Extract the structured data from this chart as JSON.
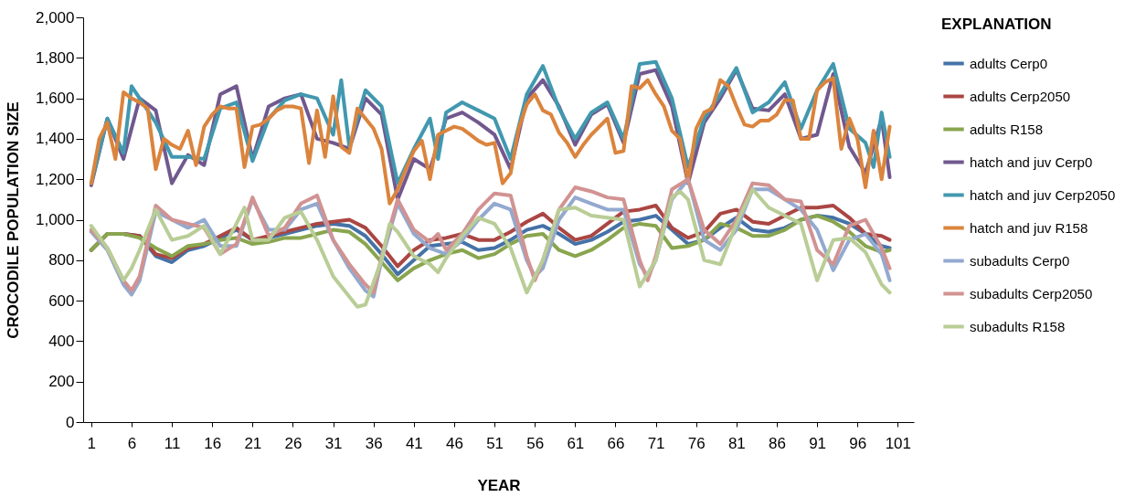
{
  "chart_data": {
    "type": "line",
    "xlabel": "YEAR",
    "ylabel": "CROCODILE POPULATION SIZE",
    "legend_title": "EXPLANATION",
    "legend": "right",
    "grid": false,
    "marker": "none",
    "line_style": "solid",
    "xlim": [
      0,
      103
    ],
    "xticks": [
      1,
      6,
      11,
      16,
      21,
      26,
      31,
      36,
      41,
      46,
      51,
      56,
      61,
      66,
      71,
      76,
      81,
      86,
      91,
      96,
      101
    ],
    "ylim": [
      0,
      2000
    ],
    "yticks": [
      0,
      200,
      400,
      600,
      800,
      {
        "value": 1000,
        "label": "1,000"
      },
      {
        "value": 1200,
        "label": "1,200"
      },
      {
        "value": 1400,
        "label": "1,400"
      },
      {
        "value": 1600,
        "label": "1,600"
      },
      {
        "value": 1800,
        "label": "1,800"
      },
      {
        "value": 2000,
        "label": "2,000"
      }
    ],
    "series": [
      {
        "name": "adults Cerp0",
        "color": "#4572a7",
        "x": [
          1,
          3,
          5,
          7,
          9,
          11,
          13,
          15,
          17,
          19,
          21,
          23,
          25,
          27,
          29,
          31,
          33,
          35,
          37,
          39,
          41,
          43,
          45,
          47,
          49,
          51,
          53,
          55,
          57,
          59,
          61,
          63,
          65,
          67,
          69,
          71,
          73,
          75,
          77,
          79,
          81,
          83,
          85,
          87,
          89,
          91,
          93,
          95,
          97,
          99,
          100
        ],
        "values": [
          850,
          930,
          930,
          920,
          820,
          790,
          850,
          870,
          910,
          950,
          900,
          910,
          930,
          950,
          970,
          980,
          970,
          920,
          830,
          730,
          800,
          870,
          880,
          890,
          850,
          860,
          900,
          950,
          970,
          930,
          880,
          900,
          940,
          990,
          1000,
          1020,
          950,
          880,
          900,
          960,
          1010,
          950,
          940,
          960,
          1000,
          1020,
          1010,
          980,
          930,
          870,
          860
        ]
      },
      {
        "name": "adults Cerp2050",
        "color": "#aa4643",
        "x": [
          1,
          3,
          5,
          7,
          9,
          11,
          13,
          15,
          17,
          19,
          21,
          23,
          25,
          27,
          29,
          31,
          33,
          35,
          37,
          39,
          41,
          43,
          45,
          47,
          49,
          51,
          53,
          55,
          57,
          59,
          61,
          63,
          65,
          67,
          69,
          71,
          73,
          75,
          77,
          79,
          81,
          83,
          85,
          87,
          89,
          91,
          93,
          95,
          97,
          99,
          100
        ],
        "values": [
          850,
          930,
          930,
          920,
          830,
          810,
          860,
          880,
          920,
          960,
          900,
          920,
          940,
          960,
          980,
          990,
          1000,
          960,
          870,
          770,
          850,
          900,
          910,
          930,
          900,
          900,
          940,
          990,
          1030,
          960,
          900,
          920,
          980,
          1040,
          1050,
          1070,
          960,
          910,
          940,
          1030,
          1050,
          990,
          980,
          1020,
          1060,
          1060,
          1070,
          1010,
          930,
          920,
          900
        ]
      },
      {
        "name": "adults R158",
        "color": "#89a54e",
        "x": [
          1,
          3,
          5,
          7,
          9,
          11,
          13,
          15,
          17,
          19,
          21,
          23,
          25,
          27,
          29,
          31,
          33,
          35,
          37,
          39,
          41,
          43,
          45,
          47,
          49,
          51,
          53,
          55,
          57,
          59,
          61,
          63,
          65,
          67,
          69,
          71,
          73,
          75,
          77,
          79,
          81,
          83,
          85,
          87,
          89,
          91,
          93,
          95,
          97,
          99,
          100
        ],
        "values": [
          850,
          930,
          930,
          910,
          860,
          820,
          870,
          880,
          900,
          910,
          880,
          890,
          910,
          910,
          930,
          950,
          940,
          880,
          790,
          700,
          760,
          800,
          830,
          850,
          810,
          830,
          880,
          920,
          930,
          850,
          820,
          850,
          900,
          960,
          980,
          970,
          860,
          870,
          900,
          980,
          960,
          920,
          920,
          950,
          1000,
          1020,
          990,
          940,
          870,
          840,
          850
        ]
      },
      {
        "name": "hatch and juv Cerp0",
        "color": "#71588f",
        "x": [
          1,
          3,
          5,
          7,
          9,
          11,
          13,
          15,
          17,
          19,
          21,
          23,
          25,
          27,
          29,
          31,
          33,
          35,
          37,
          39,
          41,
          43,
          45,
          47,
          49,
          51,
          53,
          55,
          57,
          59,
          61,
          63,
          65,
          67,
          69,
          71,
          73,
          75,
          77,
          79,
          81,
          83,
          85,
          87,
          89,
          91,
          93,
          95,
          97,
          99,
          100
        ],
        "values": [
          1170,
          1500,
          1300,
          1600,
          1540,
          1180,
          1320,
          1270,
          1620,
          1660,
          1300,
          1560,
          1600,
          1620,
          1400,
          1380,
          1350,
          1600,
          1520,
          1100,
          1300,
          1250,
          1500,
          1530,
          1480,
          1420,
          1250,
          1600,
          1690,
          1560,
          1370,
          1520,
          1570,
          1380,
          1720,
          1740,
          1560,
          1180,
          1480,
          1600,
          1740,
          1550,
          1540,
          1620,
          1400,
          1420,
          1720,
          1360,
          1230,
          1500,
          1210
        ]
      },
      {
        "name": "hatch and juv Cerp2050",
        "color": "#4198af",
        "x": [
          1,
          3,
          5,
          6,
          7,
          9,
          11,
          13,
          15,
          17,
          19,
          21,
          23,
          25,
          27,
          29,
          31,
          32,
          33,
          35,
          37,
          39,
          41,
          43,
          44,
          45,
          47,
          49,
          51,
          53,
          55,
          57,
          59,
          61,
          63,
          65,
          67,
          69,
          71,
          73,
          75,
          77,
          79,
          81,
          83,
          85,
          87,
          89,
          91,
          93,
          95,
          97,
          98,
          99,
          100
        ],
        "values": [
          1180,
          1500,
          1330,
          1660,
          1600,
          1480,
          1310,
          1310,
          1300,
          1550,
          1580,
          1290,
          1500,
          1590,
          1620,
          1600,
          1420,
          1690,
          1360,
          1640,
          1560,
          1180,
          1350,
          1500,
          1300,
          1530,
          1580,
          1540,
          1500,
          1300,
          1620,
          1760,
          1550,
          1400,
          1530,
          1580,
          1400,
          1770,
          1780,
          1600,
          1260,
          1500,
          1620,
          1750,
          1530,
          1580,
          1680,
          1450,
          1640,
          1770,
          1450,
          1380,
          1260,
          1530,
          1310
        ]
      },
      {
        "name": "hatch and juv R158",
        "color": "#db843d",
        "x": [
          1,
          2,
          3,
          4,
          5,
          6,
          7,
          8,
          9,
          10,
          11,
          12,
          13,
          14,
          15,
          16,
          17,
          18,
          19,
          20,
          21,
          22,
          23,
          24,
          25,
          26,
          27,
          28,
          29,
          30,
          31,
          32,
          33,
          34,
          35,
          36,
          37,
          38,
          39,
          40,
          41,
          42,
          43,
          44,
          45,
          46,
          47,
          48,
          49,
          50,
          51,
          52,
          53,
          54,
          55,
          56,
          57,
          58,
          59,
          60,
          61,
          62,
          63,
          64,
          65,
          66,
          67,
          68,
          69,
          70,
          71,
          72,
          73,
          74,
          75,
          76,
          77,
          78,
          79,
          80,
          81,
          82,
          83,
          84,
          85,
          86,
          87,
          88,
          89,
          90,
          91,
          92,
          93,
          94,
          95,
          96,
          97,
          98,
          99,
          100
        ],
        "values": [
          1180,
          1400,
          1480,
          1300,
          1630,
          1600,
          1580,
          1550,
          1250,
          1400,
          1370,
          1350,
          1440,
          1270,
          1460,
          1520,
          1560,
          1550,
          1550,
          1260,
          1460,
          1470,
          1500,
          1540,
          1560,
          1560,
          1550,
          1280,
          1540,
          1310,
          1610,
          1360,
          1330,
          1550,
          1500,
          1450,
          1350,
          1080,
          1150,
          1250,
          1340,
          1390,
          1200,
          1420,
          1440,
          1460,
          1450,
          1420,
          1390,
          1370,
          1380,
          1180,
          1230,
          1450,
          1570,
          1620,
          1540,
          1520,
          1430,
          1380,
          1310,
          1370,
          1420,
          1460,
          1500,
          1330,
          1340,
          1660,
          1650,
          1690,
          1620,
          1560,
          1440,
          1400,
          1190,
          1450,
          1530,
          1550,
          1690,
          1660,
          1560,
          1470,
          1460,
          1490,
          1490,
          1520,
          1590,
          1590,
          1400,
          1400,
          1640,
          1680,
          1700,
          1350,
          1500,
          1400,
          1160,
          1440,
          1200,
          1460
        ]
      },
      {
        "name": "subadults Cerp0",
        "color": "#93a9cf",
        "x": [
          1,
          3,
          5,
          6,
          7,
          9,
          11,
          13,
          15,
          17,
          19,
          21,
          23,
          25,
          27,
          29,
          31,
          33,
          35,
          36,
          37,
          39,
          41,
          43,
          45,
          47,
          49,
          51,
          53,
          55,
          56,
          57,
          59,
          61,
          63,
          65,
          67,
          69,
          70,
          71,
          73,
          75,
          77,
          79,
          81,
          83,
          85,
          87,
          89,
          91,
          93,
          95,
          97,
          99,
          100
        ],
        "values": [
          940,
          850,
          680,
          630,
          700,
          1040,
          1000,
          960,
          1000,
          870,
          870,
          1100,
          950,
          950,
          1050,
          1080,
          900,
          760,
          650,
          620,
          800,
          1080,
          930,
          860,
          830,
          900,
          1000,
          1080,
          1050,
          800,
          720,
          760,
          1000,
          1110,
          1080,
          1050,
          1050,
          780,
          720,
          800,
          1100,
          1200,
          900,
          850,
          950,
          1150,
          1150,
          1100,
          1050,
          950,
          750,
          900,
          930,
          830,
          700
        ]
      },
      {
        "name": "subadults Cerp2050",
        "color": "#d19392",
        "x": [
          1,
          3,
          5,
          6,
          7,
          9,
          11,
          13,
          15,
          17,
          19,
          21,
          23,
          25,
          27,
          29,
          31,
          33,
          35,
          36,
          37,
          39,
          41,
          43,
          44,
          45,
          47,
          49,
          51,
          53,
          55,
          56,
          57,
          59,
          61,
          63,
          65,
          67,
          69,
          70,
          71,
          73,
          75,
          77,
          79,
          81,
          83,
          85,
          87,
          89,
          91,
          93,
          95,
          97,
          99,
          100
        ],
        "values": [
          950,
          860,
          700,
          650,
          720,
          1070,
          1000,
          980,
          960,
          830,
          880,
          1110,
          920,
          960,
          1080,
          1120,
          900,
          780,
          680,
          640,
          820,
          1100,
          950,
          890,
          930,
          850,
          930,
          1050,
          1130,
          1120,
          820,
          700,
          800,
          1050,
          1160,
          1140,
          1110,
          1100,
          800,
          700,
          820,
          1150,
          1200,
          950,
          880,
          1000,
          1180,
          1170,
          1100,
          1090,
          850,
          780,
          970,
          1000,
          860,
          760
        ]
      },
      {
        "name": "subadults R158",
        "color": "#b9cd96",
        "x": [
          1,
          3,
          5,
          6,
          7,
          9,
          11,
          13,
          15,
          17,
          19,
          20,
          21,
          23,
          25,
          27,
          29,
          31,
          33,
          34,
          35,
          37,
          38,
          39,
          41,
          43,
          44,
          45,
          47,
          49,
          51,
          53,
          55,
          57,
          59,
          61,
          63,
          65,
          67,
          69,
          71,
          73,
          74,
          75,
          77,
          79,
          81,
          83,
          85,
          87,
          89,
          91,
          93,
          95,
          97,
          99,
          100
        ],
        "values": [
          970,
          860,
          700,
          760,
          850,
          1050,
          900,
          920,
          970,
          830,
          980,
          1060,
          900,
          900,
          1010,
          1040,
          900,
          720,
          620,
          570,
          580,
          800,
          980,
          940,
          820,
          780,
          740,
          810,
          920,
          1010,
          980,
          860,
          640,
          800,
          1050,
          1060,
          1020,
          1010,
          1000,
          670,
          800,
          1110,
          1140,
          1100,
          800,
          780,
          980,
          1150,
          1060,
          1020,
          980,
          700,
          900,
          910,
          840,
          680,
          640
        ]
      }
    ]
  }
}
